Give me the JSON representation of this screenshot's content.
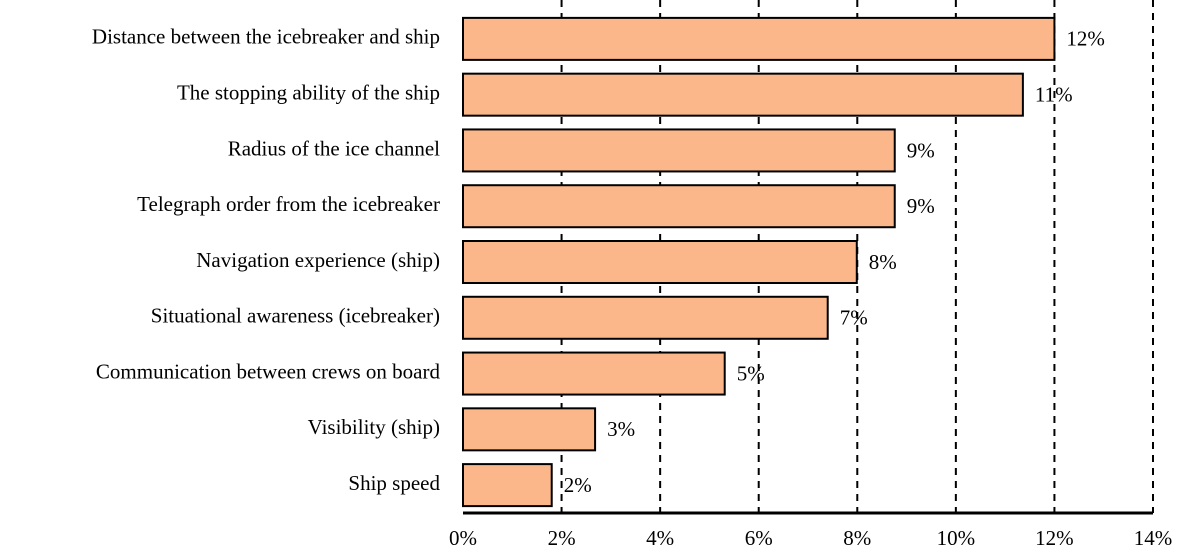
{
  "chart_data": {
    "type": "barh",
    "categories": [
      "Distance between the icebreaker and ship",
      "The stopping ability of the ship",
      "Radius of the ice channel",
      "Telegraph order from the icebreaker",
      "Navigation experience (ship)",
      "Situational awareness (icebreaker)",
      "Communication between crews on board",
      "Visibility (ship)",
      "Ship speed"
    ],
    "values": [
      12.0,
      11.36,
      8.76,
      8.76,
      7.99,
      7.4,
      5.31,
      2.68,
      1.8
    ],
    "value_labels": [
      "12%",
      "11%",
      "9%",
      "9%",
      "8%",
      "7%",
      "5%",
      "3%",
      "2%"
    ],
    "color": "#fbb68a",
    "xlim": [
      0,
      14
    ],
    "xticks": [
      {
        "value": 0,
        "label": "0%"
      },
      {
        "value": 2,
        "label": "2%"
      },
      {
        "value": 4,
        "label": "4%"
      },
      {
        "value": 6,
        "label": "6%"
      },
      {
        "value": 8,
        "label": "8%"
      },
      {
        "value": 10,
        "label": "10%"
      },
      {
        "value": 12,
        "label": "12%"
      },
      {
        "value": 14,
        "label": "14%"
      }
    ],
    "grid": true
  }
}
